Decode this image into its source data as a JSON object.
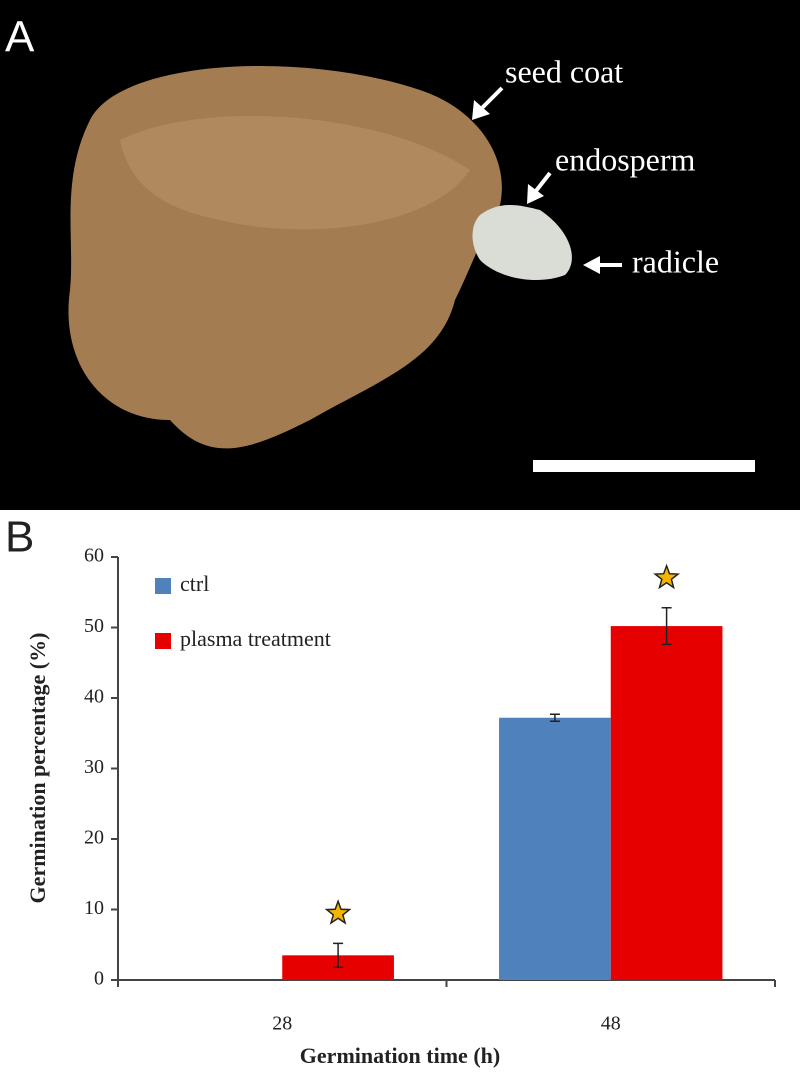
{
  "figure": {
    "panel_a_label": "A",
    "panel_b_label": "B",
    "annotations": [
      "seed coat",
      "endosperm",
      "radicle"
    ]
  },
  "chart_data": {
    "type": "bar",
    "x_label": "Germination time (h)",
    "y_label": "Germination percentage (%)",
    "categories": [
      "28",
      "48"
    ],
    "series": [
      {
        "name": "ctrl",
        "color": "#4f81bd",
        "values": [
          0,
          37.2
        ],
        "errors": [
          0,
          0.5
        ],
        "significant": [
          false,
          false
        ]
      },
      {
        "name": "plasma treatment",
        "color": "#e60000",
        "values": [
          3.5,
          50.2
        ],
        "errors": [
          1.7,
          2.6
        ],
        "significant": [
          true,
          true
        ]
      }
    ],
    "ylim": [
      0,
      60
    ],
    "yticks": [
      0,
      10,
      20,
      30,
      40,
      50,
      60
    ],
    "grid": false,
    "legend": "top-left"
  }
}
